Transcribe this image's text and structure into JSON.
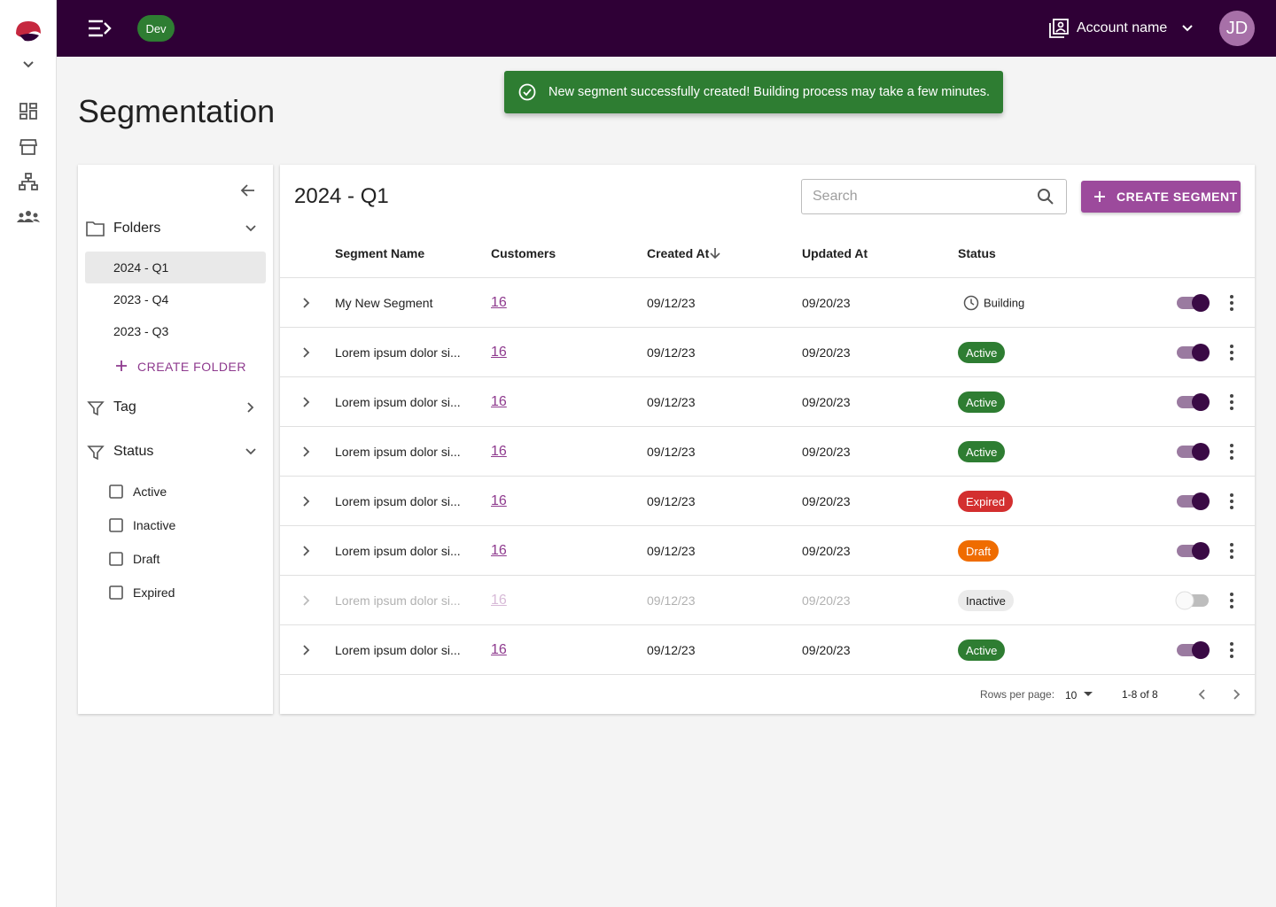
{
  "header": {
    "env": "Dev",
    "account": "Account name",
    "avatar": "JD"
  },
  "toast": "New segment successfully created! Building process may take a few minutes.",
  "page_title": "Segmentation",
  "sidebar": {
    "folders_title": "Folders",
    "folders": [
      "2024 - Q1",
      "2023 - Q4",
      "2023 - Q3"
    ],
    "create_folder": "CREATE FOLDER",
    "tag_title": "Tag",
    "status_title": "Status",
    "status_options": [
      "Active",
      "Inactive",
      "Draft",
      "Expired"
    ]
  },
  "table": {
    "title": "2024 - Q1",
    "search_placeholder": "Search",
    "create_button": "CREATE SEGMENT",
    "columns": [
      "Segment Name",
      "Customers",
      "Created At",
      "Updated At",
      "Status"
    ],
    "rows": [
      {
        "name": "My New Segment",
        "customers": 16,
        "created": "09/12/23",
        "updated": "09/20/23",
        "status": "Building",
        "enabled": true
      },
      {
        "name": "Lorem ipsum dolor si...",
        "customers": 16,
        "created": "09/12/23",
        "updated": "09/20/23",
        "status": "Active",
        "badge_color": "#2e7d32",
        "enabled": true
      },
      {
        "name": "Lorem ipsum dolor si...",
        "customers": 16,
        "created": "09/12/23",
        "updated": "09/20/23",
        "status": "Active",
        "badge_color": "#2e7d32",
        "enabled": true
      },
      {
        "name": "Lorem ipsum dolor si...",
        "customers": 16,
        "created": "09/12/23",
        "updated": "09/20/23",
        "status": "Active",
        "badge_color": "#2e7d32",
        "enabled": true
      },
      {
        "name": "Lorem ipsum dolor si...",
        "customers": 16,
        "created": "09/12/23",
        "updated": "09/20/23",
        "status": "Expired",
        "badge_color": "#d32f2f",
        "enabled": true
      },
      {
        "name": "Lorem ipsum dolor si...",
        "customers": 16,
        "created": "09/12/23",
        "updated": "09/20/23",
        "status": "Draft",
        "badge_color": "#ef6c00",
        "enabled": true
      },
      {
        "name": "Lorem ipsum dolor si...",
        "customers": 16,
        "created": "09/12/23",
        "updated": "09/20/23",
        "status": "Inactive",
        "badge_color": "#ebebeb",
        "enabled": false
      },
      {
        "name": "Lorem ipsum dolor si...",
        "customers": 16,
        "created": "09/12/23",
        "updated": "09/20/23",
        "status": "Active",
        "badge_color": "#2e7d32",
        "enabled": true
      }
    ],
    "pagination": {
      "rows_per_page_label": "Rows per page:",
      "rows_per_page": "10",
      "range": "1-8 of 8"
    }
  }
}
